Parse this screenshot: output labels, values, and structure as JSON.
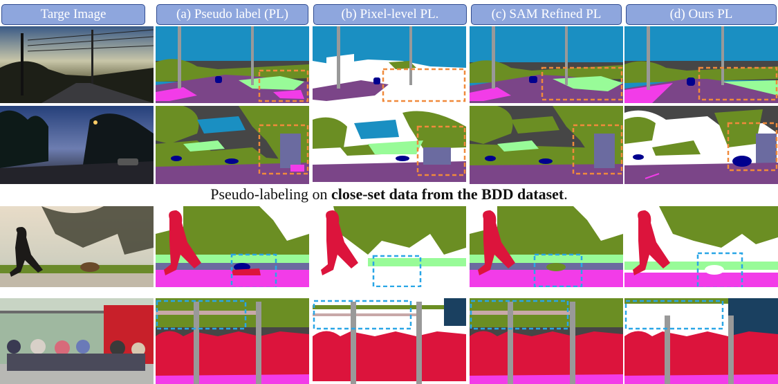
{
  "figure": {
    "headers": [
      "Targe Image",
      "(a) Pseudo label (PL)",
      "(b) Pixel-level PL.",
      "(c) SAM Refined PL",
      "(d) Ours PL"
    ],
    "caption_prefix": "Pseudo-labeling on ",
    "caption_bold": "close-set data from the BDD dataset",
    "caption_suffix": ".",
    "colors": {
      "header_fill": "#8ea6dd",
      "header_border": "#2f4b8f",
      "sky": "#1a8fc2",
      "vegetation": "#6b8e23",
      "terrain": "#98fb98",
      "road": "#7b4588",
      "sidewalk": "#f23ce8",
      "building": "#464646",
      "person": "#dc143c",
      "car": "#00008e",
      "pole": "#999999",
      "wall": "#6b6ba0",
      "ignore": "#ffffff",
      "highlight_orange": "#f08a3c",
      "highlight_blue": "#2aa6e6"
    }
  }
}
